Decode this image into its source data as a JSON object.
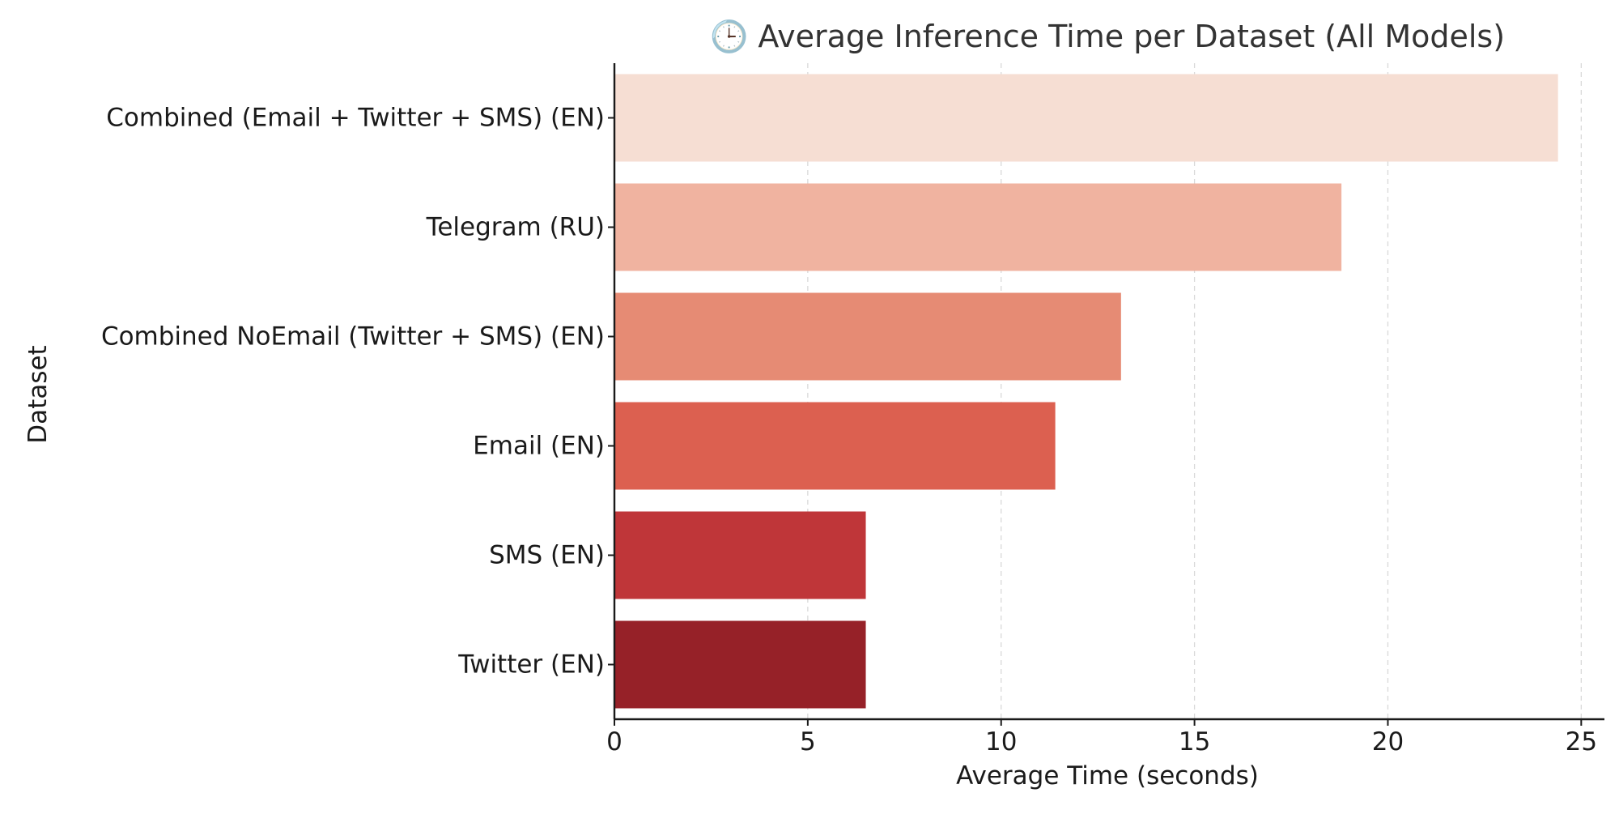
{
  "chart_data": {
    "type": "bar",
    "orientation": "horizontal",
    "title": "🕒 Average Inference Time per Dataset (All Models)",
    "xlabel": "Average Time (seconds)",
    "ylabel": "Dataset",
    "xlim": [
      0,
      25.6
    ],
    "xticks": [
      0,
      5,
      10,
      15,
      20,
      25
    ],
    "grid": "vertical dashed",
    "categories": [
      "Combined (Email + Twitter + SMS) (EN)",
      "Telegram (RU)",
      "Combined NoEmail (Twitter + SMS) (EN)",
      "Email (EN)",
      "SMS (EN)",
      "Twitter (EN)"
    ],
    "values": [
      24.4,
      18.8,
      13.1,
      11.4,
      6.5,
      6.5
    ],
    "colors": [
      "#f6ded3",
      "#f0b3a0",
      "#e68b74",
      "#dc6050",
      "#bf3639",
      "#962128"
    ]
  }
}
